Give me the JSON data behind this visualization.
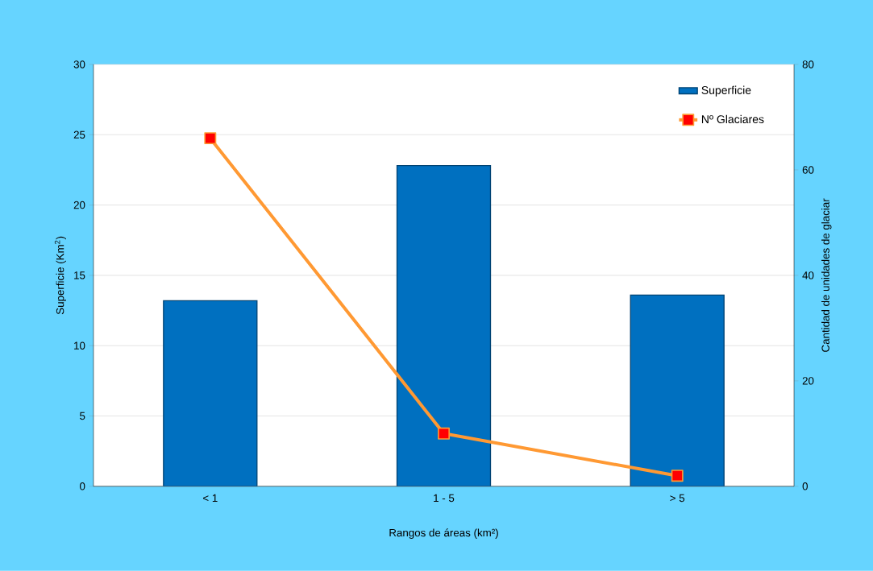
{
  "chart_data": {
    "type": "bar",
    "categories": [
      "< 1",
      "1 - 5",
      "> 5"
    ],
    "series": [
      {
        "name": "Superficie",
        "color": "#0070c0",
        "values": [
          13.2,
          22.8,
          13.6
        ]
      },
      {
        "name": "Nº Glaciares",
        "type": "line",
        "axis": "y2",
        "color": "#ff9933",
        "marker": "square",
        "values": [
          66,
          10,
          2
        ]
      }
    ],
    "xlabel": "Rangos de áreas (km²)",
    "ylabel": "Superficie (Km$^{2}$)",
    "y2label": "Cantidad de unidades de glaciar",
    "ylim": [
      0,
      30
    ],
    "yticks": [
      0,
      5,
      10,
      15,
      20,
      25,
      30
    ],
    "y2lim": [
      0,
      80
    ],
    "y2ticks": [
      0,
      20,
      40,
      60,
      80
    ],
    "grid": "y",
    "legend": "top right"
  }
}
